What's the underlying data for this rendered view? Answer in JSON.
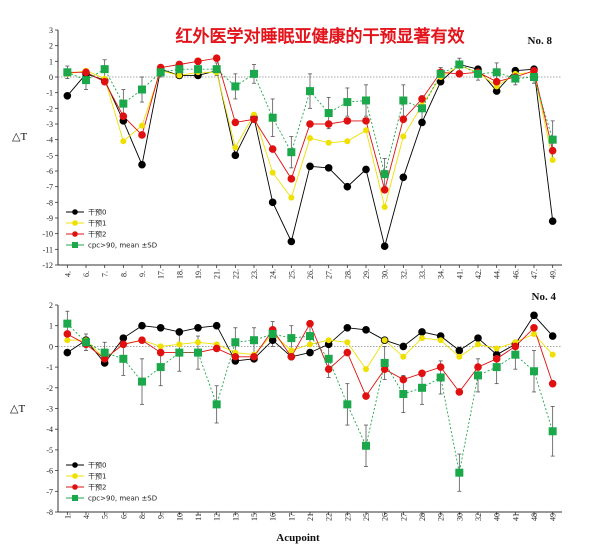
{
  "figure": {
    "title": "红外医学对睡眠亚健康的干预显著有效",
    "xlabel": "Acupoint"
  },
  "colors": {
    "s0": "#000000",
    "s1": "#f0e000",
    "s2": "#e01010",
    "s3": "#1aa84a",
    "title": "#e3141b"
  },
  "chart_data": [
    {
      "type": "line",
      "panel_label": "No. 8",
      "ylabel": "△T",
      "ylim": [
        -12,
        3
      ],
      "yticks": [
        3,
        2,
        1,
        0,
        -1,
        -2,
        -3,
        -4,
        -5,
        -6,
        -7,
        -8,
        -9,
        -10,
        -11,
        -12
      ],
      "categories": [
        "4.",
        "6.",
        "7.",
        "8.",
        "9.",
        "17.",
        "18.",
        "19.",
        "21.",
        "22.",
        "23.",
        "24.",
        "25.",
        "26.",
        "27.",
        "28.",
        "29.",
        "30.",
        "32.",
        "33.",
        "34.",
        "41.",
        "42.",
        "44.",
        "46.",
        "47.",
        "49."
      ],
      "series": [
        {
          "name": "干预0",
          "values": [
            -1.2,
            0.2,
            -0.2,
            -2.8,
            -5.6,
            0.5,
            0.1,
            0.1,
            0.4,
            -5.0,
            -2.6,
            -8.0,
            -10.5,
            -5.7,
            -5.8,
            -7.0,
            -5.9,
            -10.8,
            -6.4,
            -2.9,
            -0.3,
            0.8,
            0.5,
            -0.9,
            0.4,
            0.5,
            -9.2
          ]
        },
        {
          "name": "干预1",
          "values": [
            0.2,
            0.4,
            -0.1,
            -4.1,
            -3.1,
            0.4,
            0.1,
            0.3,
            0.3,
            -4.5,
            -2.4,
            -6.1,
            -7.7,
            -3.9,
            -4.2,
            -4.1,
            -3.4,
            -8.3,
            -3.8,
            -1.8,
            0.0,
            0.7,
            0.3,
            -0.6,
            0.2,
            0.3,
            -5.3
          ]
        },
        {
          "name": "干预2",
          "values": [
            0.3,
            0.3,
            -0.3,
            -2.5,
            -3.7,
            0.6,
            0.8,
            1.0,
            1.2,
            -2.9,
            -2.7,
            -4.6,
            -6.5,
            -3.0,
            -3.0,
            -2.8,
            -2.8,
            -7.2,
            -2.7,
            -1.4,
            0.3,
            0.2,
            0.3,
            -0.3,
            0.0,
            0.4,
            -4.7
          ]
        },
        {
          "name": "cpc>90, mean ±SD",
          "values": [
            0.3,
            -0.2,
            0.5,
            -1.7,
            -0.8,
            0.3,
            0.5,
            0.5,
            0.5,
            -0.6,
            0.2,
            -2.6,
            -4.8,
            -0.9,
            -2.3,
            -1.6,
            -1.5,
            -6.2,
            -1.5,
            -2.0,
            0.2,
            0.8,
            0.2,
            0.3,
            -0.1,
            0.0,
            -4.0
          ],
          "err": [
            0.4,
            0.6,
            0.6,
            0.9,
            0.8,
            0.3,
            0.4,
            0.3,
            0.4,
            0.8,
            0.6,
            1.2,
            1.0,
            1.1,
            1.0,
            0.9,
            1.0,
            1.0,
            1.0,
            0.8,
            0.4,
            0.4,
            0.4,
            0.6,
            0.4,
            0.4,
            1.2
          ]
        }
      ],
      "legend": "lower-left"
    },
    {
      "type": "line",
      "panel_label": "No. 4",
      "ylabel": "△T",
      "ylim": [
        -8,
        2
      ],
      "yticks": [
        2,
        1,
        0,
        -1,
        -2,
        -3,
        -4,
        -5,
        -6,
        -7,
        -8
      ],
      "categories": [
        "1.",
        "4.",
        "5.",
        "6.",
        "8.",
        "9.",
        "10.",
        "11.",
        "12.",
        "13.",
        "15.",
        "16.",
        "17.",
        "21.",
        "22.",
        "23.",
        "25.",
        "26.",
        "27.",
        "28.",
        "29.",
        "30.",
        "32.",
        "40.",
        "41.",
        "48.",
        "49."
      ],
      "series": [
        {
          "name": "干预0",
          "values": [
            -0.3,
            0.3,
            -0.8,
            0.4,
            1.0,
            0.9,
            0.7,
            0.9,
            1.0,
            -0.7,
            -0.6,
            0.3,
            -0.5,
            -0.3,
            0.1,
            0.9,
            0.8,
            0.3,
            0.0,
            0.7,
            0.5,
            -0.2,
            0.4,
            -0.4,
            0.1,
            1.5,
            0.5
          ]
        },
        {
          "name": "干预1",
          "values": [
            0.3,
            0.3,
            -0.6,
            0.1,
            0.3,
            0.0,
            0.1,
            0.2,
            0.1,
            -0.3,
            -0.4,
            0.6,
            -0.2,
            0.1,
            0.3,
            0.2,
            -1.1,
            0.3,
            -0.5,
            0.4,
            0.3,
            -0.5,
            0.1,
            -0.1,
            0.2,
            0.6,
            -0.4
          ]
        },
        {
          "name": "干预2",
          "values": [
            0.6,
            0.1,
            -0.6,
            0.1,
            0.3,
            -0.3,
            -0.3,
            -0.3,
            -0.1,
            -0.5,
            -0.5,
            0.8,
            -0.5,
            1.1,
            -1.1,
            -0.3,
            -2.4,
            -1.1,
            -1.6,
            -1.3,
            -1.0,
            -2.2,
            -1.0,
            -0.6,
            0.0,
            0.9,
            -1.8
          ]
        },
        {
          "name": "cpc>90, mean ±SD",
          "values": [
            1.1,
            0.2,
            -0.3,
            -0.6,
            -1.7,
            -1.0,
            -0.3,
            -0.3,
            -2.8,
            0.2,
            0.3,
            0.6,
            0.4,
            0.5,
            -0.6,
            -2.8,
            -4.8,
            -0.8,
            -2.3,
            -2.0,
            -1.5,
            -6.1,
            -1.4,
            -1.0,
            -0.4,
            -1.2,
            -4.1
          ],
          "err": [
            0.6,
            0.4,
            0.5,
            0.8,
            1.1,
            0.9,
            0.9,
            0.8,
            0.9,
            0.7,
            0.6,
            0.6,
            0.6,
            0.5,
            0.9,
            1.0,
            1.0,
            0.8,
            0.9,
            0.8,
            0.8,
            0.9,
            0.8,
            0.8,
            0.7,
            1.0,
            1.2
          ]
        }
      ],
      "legend": "lower-left"
    }
  ]
}
